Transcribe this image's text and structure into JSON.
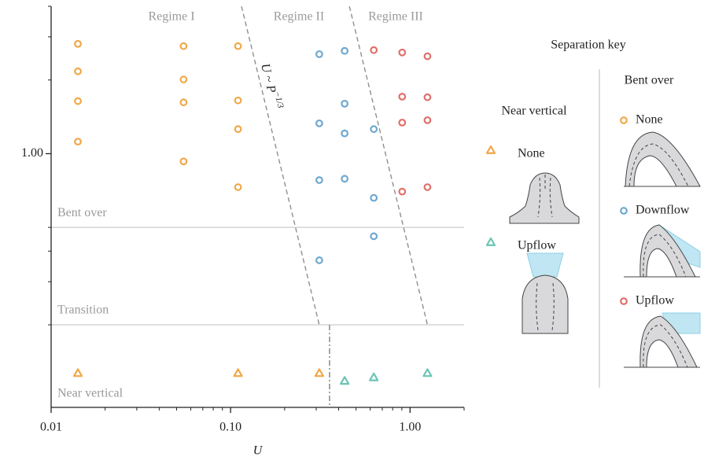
{
  "chart_data": {
    "type": "scatter",
    "xlabel": "U",
    "xlog": true,
    "ylog": true,
    "xlim": [
      0.01,
      2
    ],
    "ylim": [
      0.092,
      4
    ],
    "xticks": [
      {
        "value": 0.01,
        "label": "0.01"
      },
      {
        "value": 0.1,
        "label": "0.10"
      },
      {
        "value": 1,
        "label": "1.00"
      }
    ],
    "xminor": [
      0.02,
      0.03,
      0.04,
      0.05,
      0.06,
      0.07,
      0.08,
      0.09,
      0.2,
      0.3,
      0.4,
      0.5,
      0.6,
      0.7,
      0.8,
      0.9,
      2
    ],
    "yticks": [
      {
        "value": 1,
        "label": "1.00"
      }
    ],
    "yminor": [
      0.2,
      0.3,
      0.4,
      0.5,
      2,
      3,
      4
    ],
    "regimes": [
      "Regime I",
      "Regime II",
      "Regime III"
    ],
    "boundaries": [
      {
        "x": [
          0.115,
          0.312
        ],
        "y": [
          4,
          0.2
        ]
      },
      {
        "x": [
          0.459,
          1.25
        ],
        "y": [
          4,
          0.2
        ]
      }
    ],
    "boundary_label": "U ~ P",
    "boundary_label_sup": "−1/3",
    "threshold_x": 0.356,
    "regions": [
      {
        "label": "Bent over",
        "boundary": 0.5
      },
      {
        "label": "Transition",
        "boundary": 0.2
      },
      {
        "label": "Near vertical"
      }
    ],
    "legend_title": "Separation key",
    "groups": [
      {
        "title": "Near vertical",
        "marker": "triangle",
        "series": [
          {
            "name": "None",
            "color": "#f0a848",
            "x": [
              0.0141,
              0.11,
              0.312
            ],
            "values": [
              0.127,
              0.127,
              0.127
            ]
          },
          {
            "name": "Upflow",
            "color": "#6cc5b5",
            "x": [
              0.432,
              0.628,
              1.25
            ],
            "values": [
              0.118,
              0.122,
              0.127
            ]
          }
        ]
      },
      {
        "title": "Bent over",
        "marker": "circle",
        "series": [
          {
            "name": "None",
            "color": "#f0a848",
            "x": [
              0.0141,
              0.0141,
              0.0141,
              0.0141,
              0.0547,
              0.0547,
              0.0547,
              0.0547,
              0.11,
              0.11,
              0.11,
              0.11
            ],
            "values": [
              2.81,
              2.17,
              1.64,
              1.12,
              2.75,
              2.01,
              1.62,
              0.93,
              2.75,
              1.65,
              1.26,
              0.73
            ]
          },
          {
            "name": "Downflow",
            "color": "#6fa8d0",
            "x": [
              0.312,
              0.312,
              0.312,
              0.312,
              0.432,
              0.432,
              0.432,
              0.432,
              0.628,
              0.628,
              0.628
            ],
            "values": [
              2.55,
              1.33,
              0.78,
              0.367,
              2.63,
              1.6,
              1.21,
              0.79,
              1.26,
              0.66,
              0.46
            ]
          },
          {
            "name": "Upflow",
            "color": "#e0706a",
            "x": [
              0.628,
              0.904,
              0.904,
              0.904,
              0.904,
              1.25,
              1.25,
              1.25,
              1.25
            ],
            "values": [
              2.65,
              2.59,
              1.71,
              1.34,
              0.7,
              2.5,
              1.7,
              1.37,
              0.73
            ]
          }
        ]
      }
    ]
  }
}
